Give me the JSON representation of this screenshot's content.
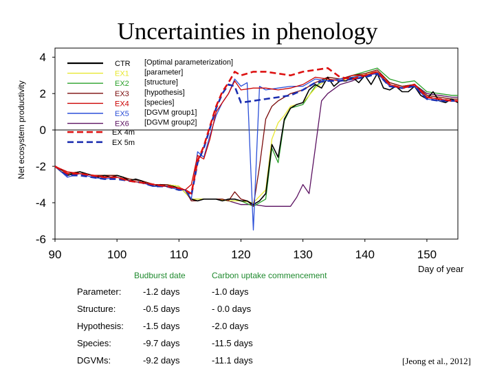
{
  "title": "Uncertainties in phenology",
  "chart_data": {
    "type": "line",
    "ylabel": "Net ecosystem productivity",
    "xlabel": "Day of year",
    "xlim": [
      90,
      155
    ],
    "ylim": [
      -6,
      4.5
    ],
    "xticks": [
      90,
      100,
      110,
      120,
      130,
      140,
      150
    ],
    "yticks": [
      4,
      2,
      0,
      -2,
      -4,
      -6
    ],
    "zero_line": true,
    "legend_position": "top-left",
    "annotations": [
      "[Optimal parameterization]",
      "[parameter]",
      "[structure]",
      "[hypothesis]",
      "[species]",
      "[DGVM group1]",
      "[DGVM group2]"
    ],
    "series": [
      {
        "name": "CTR",
        "color": "#000000",
        "dash": "solid",
        "x": [
          90,
          91,
          92,
          93,
          94,
          95,
          96,
          97,
          98,
          99,
          100,
          101,
          102,
          103,
          104,
          105,
          106,
          107,
          108,
          109,
          110,
          111,
          112,
          113,
          114,
          115,
          116,
          117,
          118,
          119,
          120,
          121,
          122,
          123,
          124,
          125,
          126,
          127,
          128,
          129,
          130,
          131,
          132,
          133,
          134,
          135,
          136,
          137,
          138,
          139,
          140,
          141,
          142,
          143,
          144,
          145,
          146,
          147,
          148,
          149,
          150,
          151,
          152,
          153,
          154,
          155
        ],
        "y": [
          -2.0,
          -2.3,
          -2.5,
          -2.4,
          -2.3,
          -2.4,
          -2.5,
          -2.6,
          -2.5,
          -2.6,
          -2.5,
          -2.6,
          -2.8,
          -2.7,
          -2.8,
          -3.0,
          -3.1,
          -3.0,
          -3.1,
          -3.1,
          -3.2,
          -3.3,
          -3.8,
          -3.9,
          -3.8,
          -3.8,
          -3.8,
          -3.9,
          -3.8,
          -3.8,
          -3.9,
          -3.9,
          -4.1,
          -3.9,
          -3.5,
          -0.8,
          -1.5,
          0.6,
          1.2,
          1.4,
          1.5,
          2.2,
          2.5,
          2.3,
          2.9,
          2.4,
          2.7,
          2.7,
          2.9,
          2.6,
          3.0,
          2.5,
          3.1,
          2.3,
          2.2,
          2.4,
          2.1,
          2.1,
          2.4,
          1.9,
          1.7,
          2.1,
          1.6,
          1.5,
          1.7,
          1.5
        ]
      },
      {
        "name": "EX1",
        "color": "#e8e830",
        "dash": "solid",
        "x": [
          90,
          92,
          94,
          96,
          98,
          100,
          102,
          104,
          106,
          108,
          110,
          112,
          114,
          116,
          118,
          120,
          122,
          124,
          125,
          126,
          127,
          128,
          130,
          132,
          134,
          136,
          138,
          140,
          142,
          144,
          146,
          148,
          150,
          152,
          154,
          155
        ],
        "y": [
          -2.0,
          -2.4,
          -2.3,
          -2.5,
          -2.5,
          -2.5,
          -2.7,
          -2.8,
          -3.0,
          -3.0,
          -3.1,
          -3.8,
          -3.8,
          -3.8,
          -3.9,
          -3.9,
          -4.0,
          -3.3,
          -0.5,
          0.4,
          0.8,
          1.3,
          1.5,
          2.3,
          2.8,
          2.7,
          2.9,
          3.1,
          3.2,
          2.6,
          2.4,
          2.5,
          1.9,
          1.8,
          1.7,
          1.7
        ]
      },
      {
        "name": "EX2",
        "color": "#2aa02a",
        "dash": "solid",
        "x": [
          90,
          92,
          94,
          96,
          98,
          100,
          102,
          104,
          106,
          108,
          110,
          112,
          114,
          116,
          118,
          120,
          122,
          124,
          125,
          126,
          127,
          128,
          130,
          132,
          134,
          136,
          138,
          140,
          142,
          144,
          146,
          148,
          150,
          152,
          154,
          155
        ],
        "y": [
          -2.0,
          -2.4,
          -2.3,
          -2.5,
          -2.5,
          -2.5,
          -2.7,
          -2.8,
          -3.0,
          -3.0,
          -3.1,
          -3.8,
          -3.8,
          -3.8,
          -3.9,
          -3.9,
          -4.2,
          -3.8,
          -1.0,
          -1.8,
          0.5,
          1.2,
          1.4,
          2.4,
          2.9,
          2.8,
          3.0,
          3.2,
          3.4,
          2.8,
          2.6,
          2.7,
          2.1,
          2.0,
          1.9,
          1.9
        ]
      },
      {
        "name": "EX3",
        "color": "#7a0a0a",
        "dash": "solid",
        "x": [
          90,
          92,
          94,
          96,
          98,
          100,
          102,
          104,
          106,
          108,
          110,
          111,
          112,
          113,
          114,
          115,
          116,
          117,
          118,
          119,
          120,
          121,
          122,
          123,
          124,
          125,
          126,
          128,
          130,
          132,
          134,
          136,
          138,
          140,
          142,
          144,
          146,
          148,
          150,
          152,
          154,
          155
        ],
        "y": [
          -2.0,
          -2.4,
          -2.3,
          -2.5,
          -2.5,
          -2.5,
          -2.7,
          -2.8,
          -3.0,
          -3.0,
          -3.2,
          -3.3,
          -3.9,
          -3.9,
          -3.8,
          -3.8,
          -3.8,
          -3.8,
          -3.9,
          -3.4,
          -3.8,
          -3.9,
          -4.2,
          -2.0,
          0.6,
          1.3,
          1.6,
          2.0,
          2.2,
          2.6,
          2.9,
          2.8,
          3.0,
          3.1,
          3.3,
          2.6,
          2.4,
          2.5,
          1.9,
          1.8,
          1.7,
          1.7
        ]
      },
      {
        "name": "EX4",
        "color": "#cc0000",
        "dash": "solid",
        "x": [
          90,
          92,
          94,
          96,
          98,
          100,
          102,
          104,
          106,
          108,
          110,
          111,
          112,
          113,
          114,
          115,
          116,
          117,
          118,
          119,
          120,
          122,
          124,
          126,
          128,
          130,
          132,
          134,
          136,
          138,
          140,
          142,
          144,
          146,
          148,
          150,
          152,
          154,
          155
        ],
        "y": [
          -2.0,
          -2.3,
          -2.4,
          -2.5,
          -2.6,
          -2.6,
          -2.8,
          -2.9,
          -3.0,
          -3.1,
          -3.2,
          -3.3,
          -3.0,
          -1.4,
          -1.6,
          -0.5,
          1.0,
          1.5,
          2.0,
          2.7,
          2.2,
          2.3,
          2.3,
          2.2,
          2.3,
          2.5,
          2.9,
          2.8,
          2.7,
          3.0,
          3.0,
          3.2,
          2.5,
          2.3,
          2.5,
          1.8,
          1.7,
          1.6,
          1.6
        ]
      },
      {
        "name": "EX5",
        "color": "#2b4fd8",
        "dash": "solid",
        "x": [
          90,
          92,
          94,
          96,
          98,
          100,
          102,
          104,
          106,
          108,
          110,
          111,
          112,
          113,
          114,
          115,
          116,
          117,
          118,
          119,
          120,
          121,
          122,
          123,
          124,
          126,
          128,
          130,
          132,
          134,
          136,
          138,
          140,
          142,
          144,
          146,
          148,
          150,
          152,
          154,
          155
        ],
        "y": [
          -2.0,
          -2.6,
          -2.4,
          -2.6,
          -2.7,
          -2.6,
          -2.8,
          -2.9,
          -3.1,
          -3.1,
          -3.3,
          -3.3,
          -3.8,
          -1.2,
          -1.5,
          -0.3,
          0.8,
          1.5,
          2.0,
          2.8,
          2.4,
          2.6,
          -5.5,
          2.4,
          2.2,
          2.3,
          2.4,
          2.4,
          2.8,
          2.7,
          2.8,
          2.9,
          3.0,
          3.1,
          2.4,
          2.3,
          2.4,
          1.7,
          1.6,
          1.6,
          1.6
        ]
      },
      {
        "name": "EX6",
        "color": "#5a1060",
        "dash": "solid",
        "x": [
          90,
          92,
          94,
          96,
          98,
          100,
          102,
          104,
          106,
          108,
          110,
          112,
          114,
          116,
          118,
          120,
          122,
          124,
          126,
          128,
          129,
          130,
          131,
          132,
          133,
          134,
          136,
          138,
          140,
          142,
          144,
          146,
          148,
          150,
          152,
          154,
          155
        ],
        "y": [
          -2.0,
          -2.4,
          -2.3,
          -2.5,
          -2.5,
          -2.5,
          -2.7,
          -2.8,
          -3.0,
          -3.0,
          -3.1,
          -3.8,
          -3.8,
          -3.8,
          -3.9,
          -4.1,
          -4.1,
          -4.2,
          -4.2,
          -4.2,
          -3.7,
          -3.0,
          -3.5,
          -1.0,
          1.6,
          2.0,
          2.5,
          2.7,
          3.0,
          3.1,
          2.6,
          2.4,
          2.5,
          2.0,
          1.9,
          1.8,
          1.8
        ]
      },
      {
        "name": "EX 4m",
        "color": "#dd1111",
        "dash": "dashed",
        "x": [
          90,
          92,
          94,
          96,
          98,
          100,
          102,
          104,
          106,
          108,
          110,
          111,
          112,
          113,
          114,
          115,
          116,
          117,
          118,
          119,
          120,
          122,
          124,
          126,
          128,
          130,
          132,
          134,
          136,
          138,
          140,
          142,
          144,
          146,
          148,
          150,
          152,
          154,
          155
        ],
        "y": [
          -2.0,
          -2.4,
          -2.4,
          -2.5,
          -2.6,
          -2.6,
          -2.8,
          -2.9,
          -3.0,
          -3.1,
          -3.2,
          -3.3,
          -3.5,
          -1.7,
          -0.9,
          0.2,
          1.3,
          2.1,
          2.6,
          3.2,
          3.0,
          3.2,
          3.2,
          3.1,
          3.0,
          3.2,
          3.3,
          3.4,
          2.9,
          2.8,
          3.0,
          3.2,
          2.5,
          2.3,
          2.5,
          1.8,
          1.7,
          1.6,
          1.6
        ]
      },
      {
        "name": "EX 5m",
        "color": "#1c2fb0",
        "dash": "dashed",
        "x": [
          90,
          92,
          94,
          96,
          98,
          100,
          102,
          104,
          106,
          108,
          110,
          111,
          112,
          113,
          114,
          115,
          116,
          117,
          118,
          119,
          120,
          122,
          124,
          126,
          128,
          130,
          132,
          134,
          136,
          138,
          140,
          142,
          144,
          146,
          148,
          150,
          152,
          154,
          155
        ],
        "y": [
          -2.0,
          -2.5,
          -2.5,
          -2.6,
          -2.7,
          -2.7,
          -2.8,
          -2.9,
          -3.1,
          -3.1,
          -3.3,
          -3.3,
          -3.6,
          -1.8,
          -1.0,
          0.1,
          1.2,
          2.0,
          2.5,
          2.4,
          1.5,
          1.6,
          1.7,
          1.8,
          1.9,
          2.2,
          2.6,
          2.7,
          2.7,
          2.8,
          2.9,
          3.1,
          2.4,
          2.3,
          2.4,
          1.7,
          1.6,
          1.6,
          1.6
        ]
      }
    ]
  },
  "summary": {
    "col1": "Budburst date",
    "col2": "Carbon uptake commencement",
    "rows": [
      {
        "label": "Parameter:",
        "budburst": "-1.2 days",
        "uptake": "-1.0 days"
      },
      {
        "label": "Structure:",
        "budburst": "-0.5 days",
        "uptake": "- 0.0 days"
      },
      {
        "label": "Hypothesis:",
        "budburst": "-1.5 days",
        "uptake": "-2.0 days"
      },
      {
        "label": "Species:",
        "budburst": "-9.7 days",
        "uptake": "-11.5 days"
      },
      {
        "label": "DGVMs:",
        "budburst": "-9.2 days",
        "uptake": "-11.1 days"
      }
    ]
  },
  "citation": "[Jeong et al., 2012]"
}
